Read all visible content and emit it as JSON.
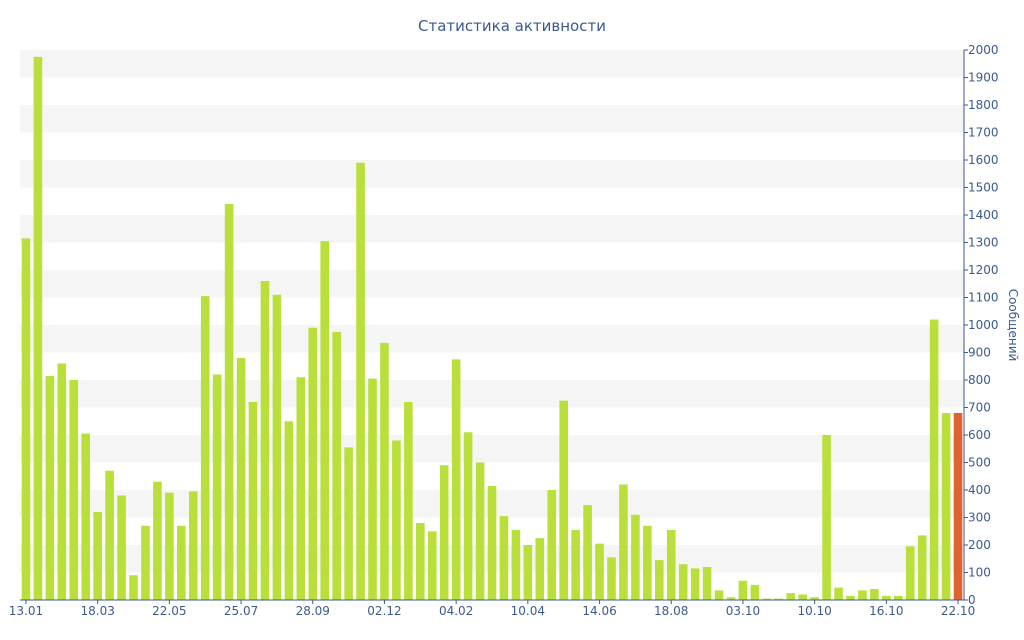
{
  "chart_data": {
    "type": "bar",
    "title": "Статистика активности",
    "ylabel": "Сообщений",
    "xlabel": "",
    "ylim": [
      0,
      2000
    ],
    "y_ticks": [
      0,
      100,
      200,
      300,
      400,
      500,
      600,
      700,
      800,
      900,
      1000,
      1100,
      1200,
      1300,
      1400,
      1500,
      1600,
      1700,
      1800,
      1900,
      2000
    ],
    "x_tick_labels": [
      {
        "index": 0,
        "label": "13.01"
      },
      {
        "index": 6,
        "label": "18.03"
      },
      {
        "index": 12,
        "label": "22.05"
      },
      {
        "index": 18,
        "label": "25.07"
      },
      {
        "index": 24,
        "label": "28.09"
      },
      {
        "index": 30,
        "label": "02.12"
      },
      {
        "index": 36,
        "label": "04.02"
      },
      {
        "index": 42,
        "label": "10.04"
      },
      {
        "index": 48,
        "label": "14.06"
      },
      {
        "index": 54,
        "label": "18.08"
      },
      {
        "index": 60,
        "label": "03.10"
      },
      {
        "index": 66,
        "label": "10.10"
      },
      {
        "index": 72,
        "label": "16.10"
      },
      {
        "index": 78,
        "label": "22.10"
      }
    ],
    "values": [
      1315,
      1975,
      815,
      860,
      800,
      605,
      320,
      470,
      380,
      90,
      270,
      430,
      390,
      270,
      395,
      1105,
      820,
      1440,
      880,
      720,
      1160,
      1110,
      650,
      810,
      990,
      1305,
      975,
      555,
      1590,
      805,
      935,
      580,
      720,
      280,
      250,
      490,
      875,
      610,
      500,
      415,
      305,
      255,
      200,
      225,
      400,
      725,
      255,
      345,
      205,
      155,
      420,
      310,
      270,
      145,
      255,
      130,
      115,
      120,
      35,
      10,
      70,
      55,
      5,
      5,
      25,
      20,
      10,
      600,
      45,
      15,
      35,
      40,
      15,
      15,
      195,
      235,
      1020,
      680,
      680
    ],
    "bar_colors": {
      "default": "#b9e03a",
      "highlight": "#e0622f"
    },
    "highlight_index": 78,
    "grid_band_color": "#f5f5f5",
    "axis_color": "#3b5a8c",
    "grid": true
  }
}
